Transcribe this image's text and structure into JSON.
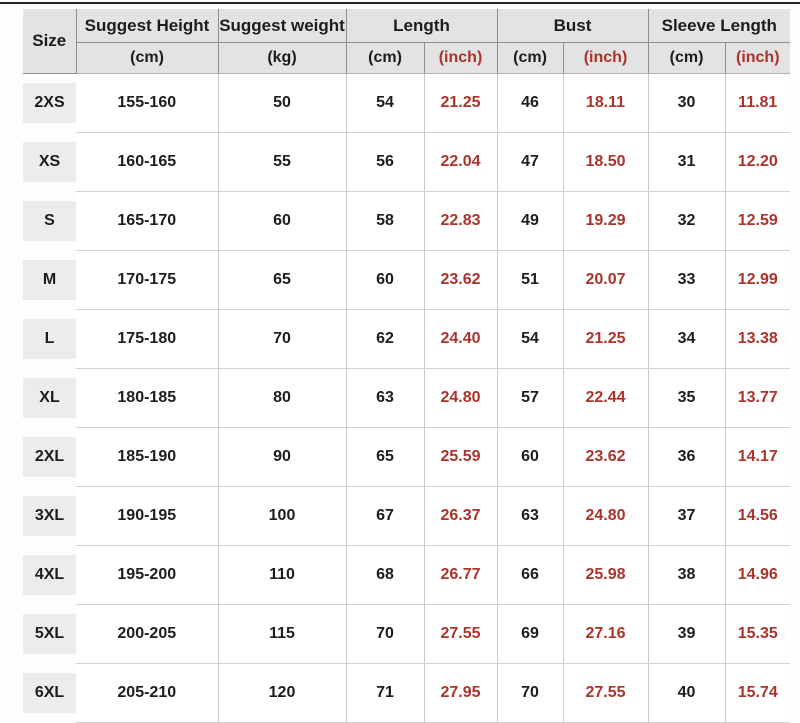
{
  "colors": {
    "page_bg": "#fdfdfd",
    "header_bg": "#e3e3e3",
    "chip_bg": "#ececec",
    "accent_red": "#ab332c",
    "text_dark": "#1d1d1d",
    "border_dark": "#8f8f8f",
    "border_light": "#d2d2d2",
    "top_rule": "#262626"
  },
  "header": {
    "size_label": "Size",
    "suggest_height": {
      "label": "Suggest Height",
      "unit": "(cm)"
    },
    "suggest_weight": {
      "label": "Suggest weight",
      "unit": "(kg)"
    },
    "length": {
      "label": "Length",
      "unit_cm": "(cm)",
      "unit_inch": "(inch)"
    },
    "bust": {
      "label": "Bust",
      "unit_cm": "(cm)",
      "unit_inch": "(inch)"
    },
    "sleeve_length": {
      "label": "Sleeve Length",
      "unit_cm": "(cm)",
      "unit_inch": "(inch)"
    }
  },
  "chart_data": {
    "type": "table",
    "title": "Garment size chart",
    "columns": [
      "Size",
      "Suggest Height (cm)",
      "Suggest weight (kg)",
      "Length (cm)",
      "Length (inch)",
      "Bust (cm)",
      "Bust (inch)",
      "Sleeve Length (cm)",
      "Sleeve Length (inch)"
    ],
    "rows": [
      [
        "2XS",
        "155-160",
        "50",
        "54",
        "21.25",
        "46",
        "18.11",
        "30",
        "11.81"
      ],
      [
        "XS",
        "160-165",
        "55",
        "56",
        "22.04",
        "47",
        "18.50",
        "31",
        "12.20"
      ],
      [
        "S",
        "165-170",
        "60",
        "58",
        "22.83",
        "49",
        "19.29",
        "32",
        "12.59"
      ],
      [
        "M",
        "170-175",
        "65",
        "60",
        "23.62",
        "51",
        "20.07",
        "33",
        "12.99"
      ],
      [
        "L",
        "175-180",
        "70",
        "62",
        "24.40",
        "54",
        "21.25",
        "34",
        "13.38"
      ],
      [
        "XL",
        "180-185",
        "80",
        "63",
        "24.80",
        "57",
        "22.44",
        "35",
        "13.77"
      ],
      [
        "2XL",
        "185-190",
        "90",
        "65",
        "25.59",
        "60",
        "23.62",
        "36",
        "14.17"
      ],
      [
        "3XL",
        "190-195",
        "100",
        "67",
        "26.37",
        "63",
        "24.80",
        "37",
        "14.56"
      ],
      [
        "4XL",
        "195-200",
        "110",
        "68",
        "26.77",
        "66",
        "25.98",
        "38",
        "14.96"
      ],
      [
        "5XL",
        "200-205",
        "115",
        "70",
        "27.55",
        "69",
        "27.16",
        "39",
        "15.35"
      ],
      [
        "6XL",
        "205-210",
        "120",
        "71",
        "27.95",
        "70",
        "27.55",
        "40",
        "15.74"
      ]
    ]
  }
}
